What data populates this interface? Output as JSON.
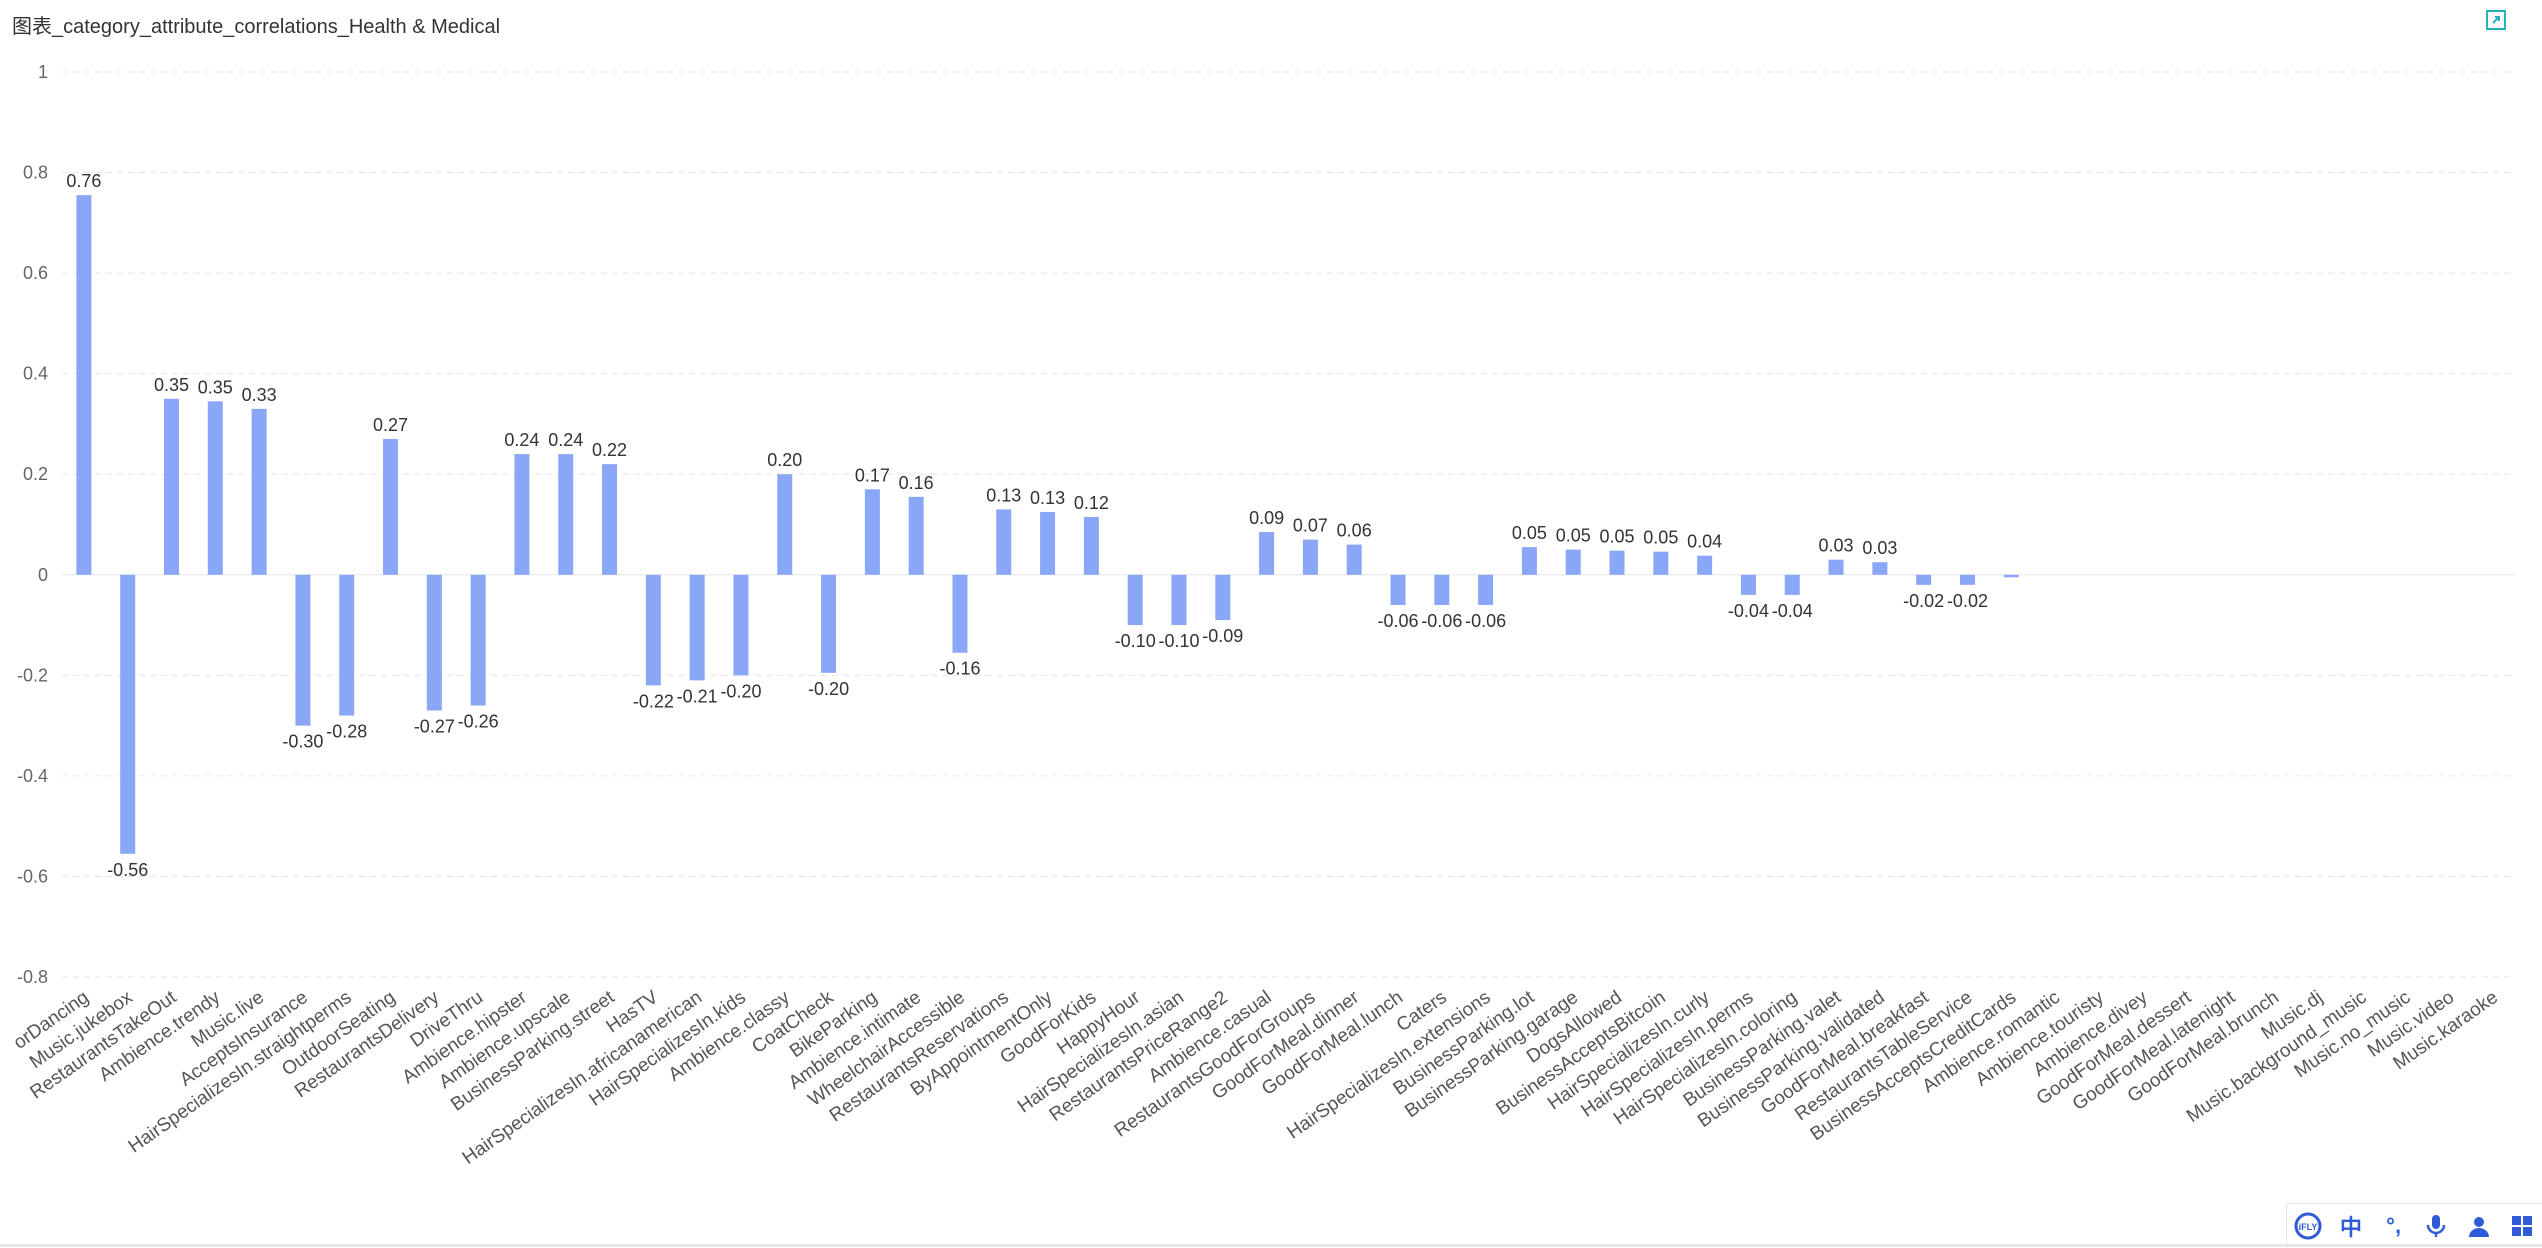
{
  "window": {
    "title": "图表_category_attribute_correlations_Health & Medical"
  },
  "ime": {
    "brand": "iFLY",
    "lang": "中",
    "punct": "°,"
  },
  "colors": {
    "bar": "#8aa6f7",
    "grid": "#e6e6e6",
    "text": "#333333"
  },
  "chart_data": {
    "type": "bar",
    "title": "图表_category_attribute_correlations_Health & Medical",
    "ylim": [
      -0.8,
      1
    ],
    "yticks": [
      1,
      0.8,
      0.6,
      0.4,
      0.2,
      0,
      -0.2,
      -0.4,
      -0.6,
      -0.8
    ],
    "ytick_labels": [
      "1",
      "0.8",
      "0.6",
      "0.4",
      "0.2",
      "0",
      "-0.2",
      "-0.4",
      "-0.6",
      "-0.8"
    ],
    "grid": true,
    "categories": [
      "orDancing",
      "Music.jukebox",
      "RestaurantsTakeOut",
      "Ambience.trendy",
      "Music.live",
      "AcceptsInsurance",
      "HairSpecializesIn.straightperms",
      "OutdoorSeating",
      "RestaurantsDelivery",
      "DriveThru",
      "Ambience.hipster",
      "Ambience.upscale",
      "BusinessParking.street",
      "HasTV",
      "HairSpecializesIn.africanamerican",
      "HairSpecializesIn.kids",
      "Ambience.classy",
      "CoatCheck",
      "BikeParking",
      "Ambience.intimate",
      "WheelchairAccessible",
      "RestaurantsReservations",
      "ByAppointmentOnly",
      "GoodForKids",
      "HappyHour",
      "HairSpecializesIn.asian",
      "RestaurantsPriceRange2",
      "Ambience.casual",
      "RestaurantsGoodForGroups",
      "GoodForMeal.dinner",
      "GoodForMeal.lunch",
      "Caters",
      "HairSpecializesIn.extensions",
      "BusinessParking.lot",
      "BusinessParking.garage",
      "DogsAllowed",
      "BusinessAcceptsBitcoin",
      "HairSpecializesIn.curly",
      "HairSpecializesIn.perms",
      "HairSpecializesIn.coloring",
      "BusinessParking.valet",
      "BusinessParking.validated",
      "GoodForMeal.breakfast",
      "RestaurantsTableService",
      "BusinessAcceptsCreditCards",
      "Ambience.romantic",
      "Ambience.touristy",
      "Ambience.divey",
      "GoodForMeal.dessert",
      "GoodForMeal.latenight",
      "GoodForMeal.brunch",
      "Music.dj",
      "Music.background_music",
      "Music.no_music",
      "Music.video",
      "Music.karaoke"
    ],
    "values": [
      0.755,
      -0.555,
      0.35,
      0.345,
      0.33,
      -0.3,
      -0.28,
      0.27,
      -0.27,
      -0.26,
      0.24,
      0.24,
      0.22,
      -0.22,
      -0.21,
      -0.2,
      0.2,
      -0.195,
      0.17,
      0.155,
      -0.155,
      0.13,
      0.125,
      0.115,
      -0.1,
      -0.1,
      -0.09,
      0.085,
      0.07,
      0.06,
      -0.06,
      -0.06,
      -0.06,
      0.055,
      0.05,
      0.048,
      0.046,
      0.038,
      -0.04,
      -0.04,
      0.03,
      0.025,
      -0.02,
      -0.02,
      -0.005,
      0,
      0,
      0,
      0,
      0,
      0,
      0,
      0,
      0,
      0,
      0
    ],
    "data_labels": [
      "0.76",
      "-0.56",
      "0.35",
      "0.35",
      "0.33",
      "-0.30",
      "-0.28",
      "0.27",
      "-0.27",
      "-0.26",
      "0.24",
      "0.24",
      "0.22",
      "-0.22",
      "-0.21",
      "-0.20",
      "0.20",
      "-0.20",
      "0.17",
      "0.16",
      "-0.16",
      "0.13",
      "0.13",
      "0.12",
      "-0.10",
      "-0.10",
      "-0.09",
      "0.09",
      "0.07",
      "0.06",
      "-0.06",
      "-0.06",
      "-0.06",
      "0.05",
      "0.05",
      "0.05",
      "0.05",
      "0.04",
      "-0.04",
      "-0.04",
      "0.03",
      "0.03",
      "-0.02",
      "-0.02",
      "",
      "",
      "",
      "",
      "",
      "",
      "",
      "",
      "",
      "",
      "",
      ""
    ]
  }
}
